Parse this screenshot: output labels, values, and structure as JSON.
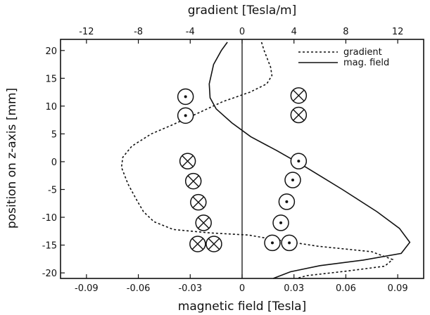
{
  "chart_data": {
    "type": "line",
    "title": "",
    "top_axis": {
      "label": "gradient [Tesla/m]",
      "ticks": [
        -12,
        -8,
        -4,
        0,
        4,
        8,
        12
      ],
      "tick_labels": [
        "-12",
        "-8",
        "-4",
        "0",
        "4",
        "8",
        "12"
      ],
      "range": [
        -14,
        14
      ]
    },
    "xlabel": "magnetic field [Tesla]",
    "xlim": [
      -0.105,
      0.105
    ],
    "x_ticks": [
      -0.09,
      -0.06,
      -0.03,
      0,
      0.03,
      0.06,
      0.09
    ],
    "x_tick_labels": [
      "-0.09",
      "-0.06",
      "-0.03",
      "0",
      "0.03",
      "0.06",
      "0.09"
    ],
    "ylabel": "position on z-axis [mm]",
    "ylim": [
      -21,
      22
    ],
    "y_ticks": [
      20,
      15,
      10,
      5,
      0,
      -5,
      -10,
      -15,
      -20
    ],
    "y_tick_labels": [
      "20",
      "15",
      "10",
      "5",
      "0",
      "-5",
      "-10",
      "-15",
      "-20"
    ],
    "grid": false,
    "legend_position": "top-right",
    "series": [
      {
        "name": "gradient",
        "style": "dashed",
        "axis": "top",
        "points": [
          [
            1.5,
            21.5
          ],
          [
            1.7,
            20
          ],
          [
            2.2,
            17
          ],
          [
            2.3,
            15.5
          ],
          [
            1.9,
            14
          ],
          [
            0.6,
            12.5
          ],
          [
            -1.5,
            10.8
          ],
          [
            -3.8,
            8.3
          ],
          [
            -5.5,
            6.5
          ],
          [
            -7,
            5
          ],
          [
            -8.5,
            2.8
          ],
          [
            -9.2,
            0.8
          ],
          [
            -9.3,
            -1
          ],
          [
            -8.8,
            -4
          ],
          [
            -8.1,
            -7
          ],
          [
            -7.6,
            -9
          ],
          [
            -6.8,
            -10.8
          ],
          [
            -5.3,
            -12.2
          ],
          [
            -2.5,
            -12.8
          ],
          [
            0.5,
            -13.2
          ],
          [
            2.5,
            -14
          ],
          [
            5.8,
            -15.2
          ],
          [
            10,
            -16.2
          ],
          [
            11.6,
            -17.6
          ],
          [
            11,
            -18.8
          ],
          [
            8,
            -19.7
          ],
          [
            5,
            -20.5
          ],
          [
            4.2,
            -21
          ]
        ]
      },
      {
        "name": "mag. field",
        "style": "solid",
        "axis": "bottom",
        "points": [
          [
            -0.0085,
            21.5
          ],
          [
            -0.012,
            20
          ],
          [
            -0.0165,
            17.5
          ],
          [
            -0.019,
            14
          ],
          [
            -0.0185,
            11.5
          ],
          [
            -0.015,
            9.5
          ],
          [
            -0.006,
            7
          ],
          [
            0.005,
            4.5
          ],
          [
            0.02,
            2
          ],
          [
            0.037,
            -1
          ],
          [
            0.058,
            -5
          ],
          [
            0.078,
            -9
          ],
          [
            0.091,
            -12
          ],
          [
            0.097,
            -14.5
          ],
          [
            0.092,
            -16.5
          ],
          [
            0.07,
            -17.7
          ],
          [
            0.045,
            -18.7
          ],
          [
            0.028,
            -19.8
          ],
          [
            0.018,
            -21
          ]
        ]
      }
    ],
    "annotations": {
      "description_free_markers": true,
      "markers": [
        {
          "type": "dot",
          "x": -0.0327,
          "y": 11.7
        },
        {
          "type": "dot",
          "x": -0.0327,
          "y": 8.3
        },
        {
          "type": "cross",
          "x": -0.0315,
          "y": 0.1
        },
        {
          "type": "cross",
          "x": -0.0282,
          "y": -3.5
        },
        {
          "type": "cross",
          "x": -0.0253,
          "y": -7.3
        },
        {
          "type": "cross",
          "x": -0.0223,
          "y": -11
        },
        {
          "type": "cross",
          "x": -0.0257,
          "y": -14.8
        },
        {
          "type": "cross",
          "x": -0.0163,
          "y": -14.8
        },
        {
          "type": "cross",
          "x": 0.0327,
          "y": 11.9
        },
        {
          "type": "cross",
          "x": 0.0327,
          "y": 8.4
        },
        {
          "type": "dot",
          "x": 0.0327,
          "y": 0.1
        },
        {
          "type": "dot",
          "x": 0.0293,
          "y": -3.3
        },
        {
          "type": "dot",
          "x": 0.0258,
          "y": -7.2
        },
        {
          "type": "dot",
          "x": 0.0224,
          "y": -11
        },
        {
          "type": "dot",
          "x": 0.0175,
          "y": -14.6
        },
        {
          "type": "dot",
          "x": 0.0273,
          "y": -14.6
        }
      ]
    }
  }
}
